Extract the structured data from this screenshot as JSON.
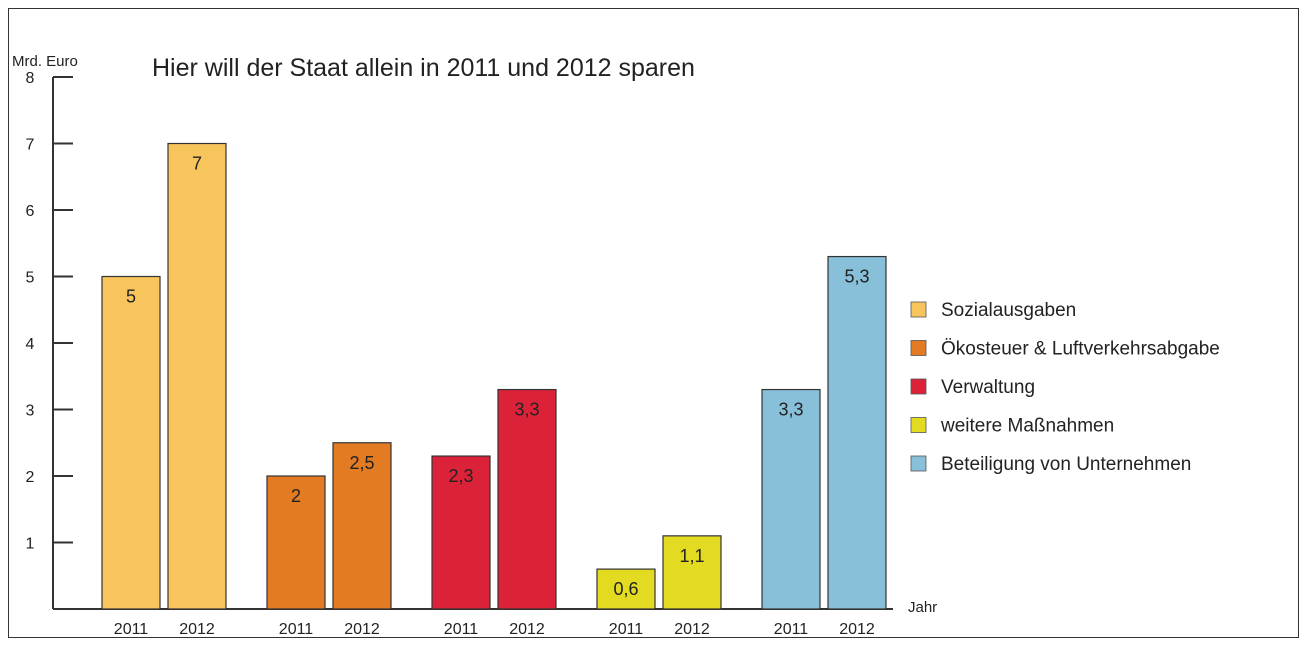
{
  "chart_data": {
    "type": "bar",
    "title": "Hier will der Staat allein in 2011 und 2012 sparen",
    "ylabel": "Mrd. Euro",
    "xlabel": "Jahr",
    "ylim": [
      0,
      8
    ],
    "yticks": [
      1,
      2,
      3,
      4,
      5,
      6,
      7,
      8
    ],
    "grid": false,
    "legend_position": "right",
    "groups": [
      {
        "name": "Sozialausgaben",
        "color": "#F8C55D",
        "bars": [
          {
            "year": "2011",
            "value": 5,
            "label": "5"
          },
          {
            "year": "2012",
            "value": 7,
            "label": "7"
          }
        ]
      },
      {
        "name": "Ökosteuer & Luftverkehrsabgabe",
        "color": "#E27B22",
        "bars": [
          {
            "year": "2011",
            "value": 2,
            "label": "2"
          },
          {
            "year": "2012",
            "value": 2.5,
            "label": "2,5"
          }
        ]
      },
      {
        "name": "Verwaltung",
        "color": "#DC2239",
        "bars": [
          {
            "year": "2011",
            "value": 2.3,
            "label": "2,3"
          },
          {
            "year": "2012",
            "value": 3.3,
            "label": "3,3"
          }
        ]
      },
      {
        "name": "weitere Maßnahmen",
        "color": "#E3DB21",
        "bars": [
          {
            "year": "2011",
            "value": 0.6,
            "label": "0,6"
          },
          {
            "year": "2012",
            "value": 1.1,
            "label": "1,1"
          }
        ]
      },
      {
        "name": "Beteiligung  von Unternehmen",
        "color": "#88BFD9",
        "bars": [
          {
            "year": "2011",
            "value": 3.3,
            "label": "3,3"
          },
          {
            "year": "2012",
            "value": 5.3,
            "label": "5,3"
          }
        ]
      }
    ]
  }
}
